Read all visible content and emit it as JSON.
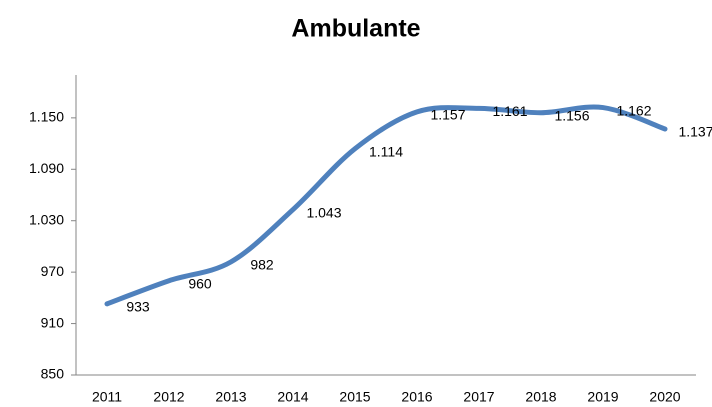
{
  "chart_data": {
    "type": "line",
    "title": "Ambulante",
    "categories": [
      "2011",
      "2012",
      "2013",
      "2014",
      "2015",
      "2016",
      "2017",
      "2018",
      "2019",
      "2020"
    ],
    "values": [
      933,
      960,
      982,
      1043,
      1114,
      1157,
      1161,
      1156,
      1162,
      1137
    ],
    "value_labels": [
      "933",
      "960",
      "982",
      "1.043",
      "1.114",
      "1.157",
      "1.161",
      "1.156",
      "1.162",
      "1.137"
    ],
    "color": "#4f81bd",
    "ylim": [
      850,
      1200
    ],
    "yticks": [
      850,
      910,
      970,
      {
        "value": 1030,
        "label": "1.030"
      },
      {
        "value": 1090,
        "label": "1.090"
      },
      {
        "value": 1150,
        "label": "1.150"
      }
    ],
    "smooth": true
  }
}
